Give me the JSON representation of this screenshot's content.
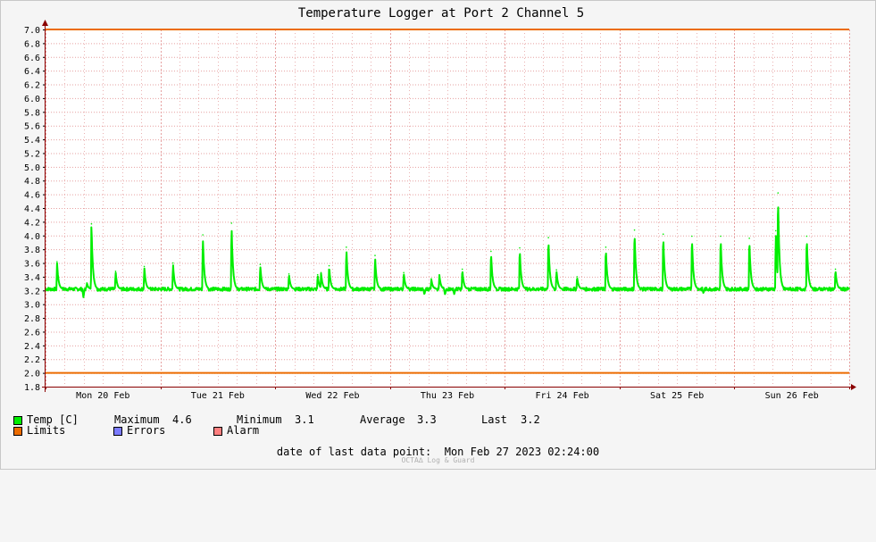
{
  "chart_data": {
    "type": "line",
    "title": "Temperature Logger at Port 2 Channel 5",
    "ylim": [
      1.8,
      7.0
    ],
    "yticks": [
      "7.0",
      "6.8",
      "6.6",
      "6.4",
      "6.2",
      "6.0",
      "5.8",
      "5.6",
      "5.4",
      "5.2",
      "5.0",
      "4.8",
      "4.6",
      "4.4",
      "4.2",
      "4.0",
      "3.8",
      "3.6",
      "3.4",
      "3.2",
      "3.0",
      "2.8",
      "2.6",
      "2.4",
      "2.2",
      "2.0",
      "1.8"
    ],
    "xlim_days": [
      0,
      7.0
    ],
    "x_tick_labels": [
      {
        "label": "Mon 20 Feb",
        "day": 0.5
      },
      {
        "label": "Tue 21 Feb",
        "day": 1.5
      },
      {
        "label": "Wed 22 Feb",
        "day": 2.5
      },
      {
        "label": "Thu 23 Feb",
        "day": 3.5
      },
      {
        "label": "Fri 24 Feb",
        "day": 4.5
      },
      {
        "label": "Sat 25 Feb",
        "day": 5.5
      },
      {
        "label": "Sun 26 Feb",
        "day": 6.5
      }
    ],
    "limits": [
      7.0,
      2.0
    ],
    "series": [
      {
        "name": "Temp [C]",
        "color": "#00ee00",
        "baseline": 3.22,
        "spikes": [
          {
            "day": 0.1,
            "peak": 3.62
          },
          {
            "day": 0.36,
            "peak": 3.31
          },
          {
            "day": 0.4,
            "peak": 4.17
          },
          {
            "day": 0.61,
            "peak": 3.48
          },
          {
            "day": 0.86,
            "peak": 3.55
          },
          {
            "day": 1.11,
            "peak": 3.6
          },
          {
            "day": 1.37,
            "peak": 4.01
          },
          {
            "day": 1.62,
            "peak": 4.18
          },
          {
            "day": 1.87,
            "peak": 3.58
          },
          {
            "day": 2.12,
            "peak": 3.44
          },
          {
            "day": 2.37,
            "peak": 3.43
          },
          {
            "day": 2.4,
            "peak": 3.46
          },
          {
            "day": 2.47,
            "peak": 3.56
          },
          {
            "day": 2.62,
            "peak": 3.83
          },
          {
            "day": 2.87,
            "peak": 3.71
          },
          {
            "day": 3.12,
            "peak": 3.46
          },
          {
            "day": 3.36,
            "peak": 3.37
          },
          {
            "day": 3.43,
            "peak": 3.43
          },
          {
            "day": 3.63,
            "peak": 3.51
          },
          {
            "day": 3.88,
            "peak": 3.77
          },
          {
            "day": 4.13,
            "peak": 3.82
          },
          {
            "day": 4.38,
            "peak": 3.97
          },
          {
            "day": 4.45,
            "peak": 3.5
          },
          {
            "day": 4.63,
            "peak": 3.4
          },
          {
            "day": 4.88,
            "peak": 3.83
          },
          {
            "day": 5.13,
            "peak": 4.08
          },
          {
            "day": 5.38,
            "peak": 4.02
          },
          {
            "day": 5.63,
            "peak": 3.99
          },
          {
            "day": 5.88,
            "peak": 3.99
          },
          {
            "day": 6.13,
            "peak": 3.96
          },
          {
            "day": 6.36,
            "peak": 4.07
          },
          {
            "day": 6.38,
            "peak": 4.62
          },
          {
            "day": 6.63,
            "peak": 3.99
          },
          {
            "day": 6.88,
            "peak": 3.51
          }
        ],
        "dips": [
          {
            "day": 0.33,
            "value": 3.1
          },
          {
            "day": 3.3,
            "value": 3.14
          },
          {
            "day": 3.48,
            "value": 3.14
          },
          {
            "day": 3.56,
            "value": 3.14
          },
          {
            "day": 5.73,
            "value": 3.16
          }
        ]
      }
    ]
  },
  "legend": {
    "temp_label": "Temp [C]",
    "max_label": "Maximum",
    "max_value": "4.6",
    "min_label": "Minimum",
    "min_value": "3.1",
    "avg_label": "Average",
    "avg_value": "3.3",
    "last_label": "Last",
    "last_value": "3.2",
    "limits_label": "Limits",
    "errors_label": "Errors",
    "alarm_label": "Alarm"
  },
  "colors": {
    "temp": "#00ee00",
    "limits": "#ec6c00",
    "errors": "#7b7bff",
    "alarm": "#ff7f7f",
    "grid": "#e6a0a0",
    "axis": "#8b0000"
  },
  "footer": {
    "date_line": "date of last data point:  Mon Feb 27 2023 02:24:00",
    "brand": "OCTA∆ Log & Guard"
  }
}
